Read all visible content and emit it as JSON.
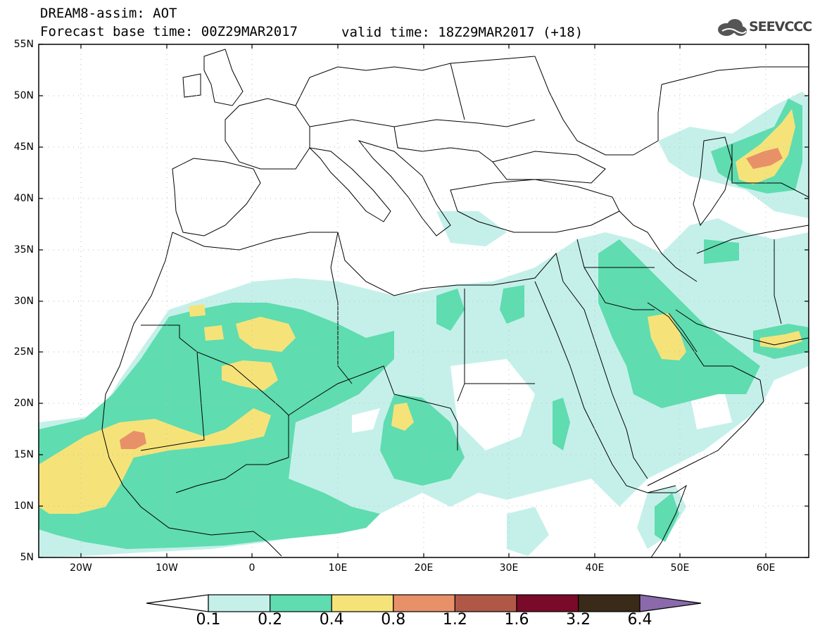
{
  "header": {
    "title": "DREAM8-assim: AOT",
    "forecast_base": "Forecast base time: 00Z29MAR2017",
    "valid_time": "valid time: 18Z29MAR2017 (+18)",
    "logo_text": "SEEVCCC"
  },
  "map": {
    "lat_labels": [
      "55N",
      "50N",
      "45N",
      "40N",
      "35N",
      "30N",
      "25N",
      "20N",
      "15N",
      "10N",
      "5N"
    ],
    "lon_labels": [
      "20W",
      "10W",
      "0",
      "10E",
      "20E",
      "30E",
      "40E",
      "50E",
      "60E"
    ],
    "lon_range": [
      -25,
      65
    ],
    "lat_range": [
      5,
      55
    ],
    "field": "AOT"
  },
  "legend": {
    "levels": [
      "0.1",
      "0.2",
      "0.4",
      "0.8",
      "1.2",
      "1.6",
      "3.2",
      "6.4"
    ],
    "colors": [
      "#c5f0ea",
      "#5fdcb0",
      "#f5e37a",
      "#e89068",
      "#b05848",
      "#7a0a2a",
      "#3a2a18",
      "#8a6aaa"
    ]
  }
}
